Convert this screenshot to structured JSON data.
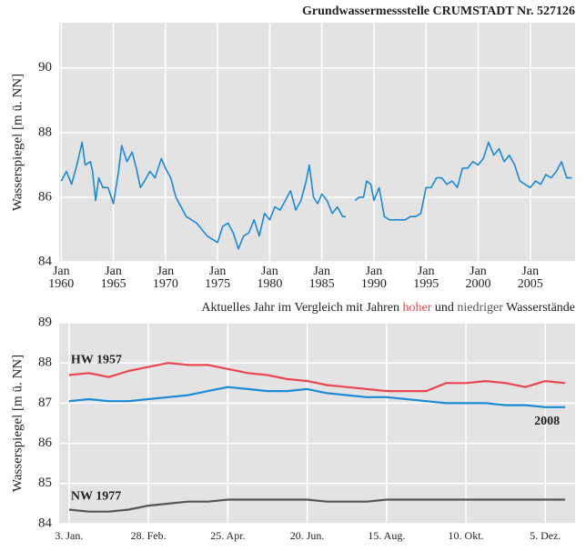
{
  "chart_data": [
    {
      "type": "line",
      "title": "Grundwassermessstelle CRUMSTADT  Nr. 527126",
      "y_label": "Wasserspiegel  [m ü. NN]",
      "xtick_month": "Jan",
      "x": [
        1960,
        1960.5,
        1961,
        1961.5,
        1962,
        1962.3,
        1962.8,
        1963,
        1963.3,
        1963.6,
        1964,
        1964.5,
        1965,
        1965.5,
        1965.8,
        1966.3,
        1966.8,
        1967.2,
        1967.6,
        1968,
        1968.5,
        1969,
        1969.6,
        1970,
        1970.5,
        1971,
        1971.5,
        1972,
        1973,
        1973.5,
        1974,
        1975,
        1975.5,
        1976,
        1976.5,
        1977,
        1977.5,
        1978,
        1978.5,
        1979,
        1979.5,
        1980,
        1980.5,
        1981,
        1981.5,
        1982,
        1982.5,
        1983,
        1983.5,
        1983.8,
        1984.2,
        1984.6,
        1985,
        1985.5,
        1986,
        1986.5,
        1987,
        1987.3,
        1987.8,
        1988.2,
        1988.6,
        1989,
        1989.3,
        1989.7,
        1990,
        1990.5,
        1991,
        1991.5,
        1992,
        1993,
        1993.5,
        1994,
        1994.5,
        1995,
        1995.5,
        1996,
        1996.5,
        1997,
        1997.5,
        1998,
        1998.5,
        1999,
        1999.5,
        2000,
        2000.5,
        2001,
        2001.5,
        2002,
        2002.5,
        2003,
        2003.5,
        2004,
        2004.5,
        2005,
        2005.5,
        2006,
        2006.5,
        2007,
        2007.5,
        2008,
        2008.5,
        2009
      ],
      "values": [
        86.5,
        86.8,
        86.4,
        87.0,
        87.7,
        87.0,
        87.1,
        86.8,
        85.9,
        86.6,
        86.3,
        86.3,
        85.8,
        86.8,
        87.6,
        87.1,
        87.4,
        86.9,
        86.3,
        86.5,
        86.8,
        86.6,
        87.2,
        86.9,
        86.6,
        86.0,
        85.7,
        85.4,
        85.2,
        85.0,
        84.8,
        84.6,
        85.1,
        85.2,
        84.9,
        84.4,
        84.8,
        84.9,
        85.3,
        84.8,
        85.5,
        85.3,
        85.7,
        85.6,
        85.9,
        86.2,
        85.6,
        85.9,
        86.5,
        87.0,
        86.0,
        85.8,
        86.1,
        85.9,
        85.5,
        85.7,
        85.4,
        85.4,
        null,
        85.9,
        86.0,
        86.0,
        86.5,
        86.4,
        85.9,
        86.3,
        85.4,
        85.3,
        85.3,
        85.3,
        85.4,
        85.4,
        85.5,
        86.3,
        86.3,
        86.6,
        86.6,
        86.4,
        86.5,
        86.3,
        86.9,
        86.9,
        87.1,
        87.0,
        87.2,
        87.7,
        87.3,
        87.5,
        87.1,
        87.3,
        87.0,
        86.5,
        86.4,
        86.3,
        86.5,
        86.4,
        86.7,
        86.6,
        86.8,
        87.1,
        86.6,
        86.6
      ],
      "color": "#1a8ad4",
      "xlim": [
        1959.8,
        2009.3
      ],
      "xticks": [
        1960,
        1965,
        1970,
        1975,
        1980,
        1985,
        1990,
        1995,
        2000,
        2005
      ],
      "ylim": [
        84,
        91.4
      ],
      "yticks": [
        84,
        86,
        88,
        90
      ],
      "grid": true
    },
    {
      "type": "line",
      "subtitle": [
        "Aktuelles Jahr im Vergleich mit Jahren ",
        "hoher",
        " und ",
        "niedriger",
        " Wasserstände"
      ],
      "y_label": "Wasserspiegel  [m ü. NN]",
      "x": [
        3,
        17,
        31,
        45,
        59,
        73,
        87,
        101,
        115,
        129,
        143,
        157,
        171,
        185,
        199,
        213,
        227,
        241,
        255,
        269,
        283,
        297,
        311,
        325,
        339,
        353
      ],
      "series": [
        {
          "name": "HW 1957",
          "color": "#e8474f",
          "values": [
            87.7,
            87.75,
            87.65,
            87.8,
            87.9,
            88.0,
            87.95,
            87.95,
            87.85,
            87.75,
            87.7,
            87.6,
            87.55,
            87.45,
            87.4,
            87.35,
            87.3,
            87.3,
            87.3,
            87.5,
            87.5,
            87.55,
            87.5,
            87.4,
            87.55,
            87.5
          ]
        },
        {
          "name": "2008",
          "color": "#1a8ad4",
          "values": [
            87.05,
            87.1,
            87.05,
            87.05,
            87.1,
            87.15,
            87.2,
            87.3,
            87.4,
            87.35,
            87.3,
            87.3,
            87.35,
            87.25,
            87.2,
            87.15,
            87.15,
            87.1,
            87.05,
            87.0,
            87.0,
            87.0,
            86.95,
            86.95,
            86.9,
            86.9
          ]
        },
        {
          "name": "NW 1977",
          "color": "#555555",
          "values": [
            84.35,
            84.3,
            84.3,
            84.35,
            84.45,
            84.5,
            84.55,
            84.55,
            84.6,
            84.6,
            84.6,
            84.6,
            84.6,
            84.55,
            84.55,
            84.55,
            84.6,
            84.6,
            84.6,
            84.6,
            84.6,
            84.6,
            84.6,
            84.6,
            84.6,
            84.6
          ]
        }
      ],
      "xlim": [
        -4,
        360
      ],
      "xticks": [
        {
          "value": 3,
          "label": "3. Jan."
        },
        {
          "value": 59,
          "label": "28. Feb."
        },
        {
          "value": 115,
          "label": "25. Apr."
        },
        {
          "value": 171,
          "label": "20. Jun."
        },
        {
          "value": 227,
          "label": "15. Aug."
        },
        {
          "value": 283,
          "label": "10. Okt."
        },
        {
          "value": 339,
          "label": "5. Dez."
        }
      ],
      "ylim": [
        84,
        89
      ],
      "yticks": [
        84,
        85,
        86,
        87,
        88,
        89
      ],
      "grid": true
    }
  ]
}
